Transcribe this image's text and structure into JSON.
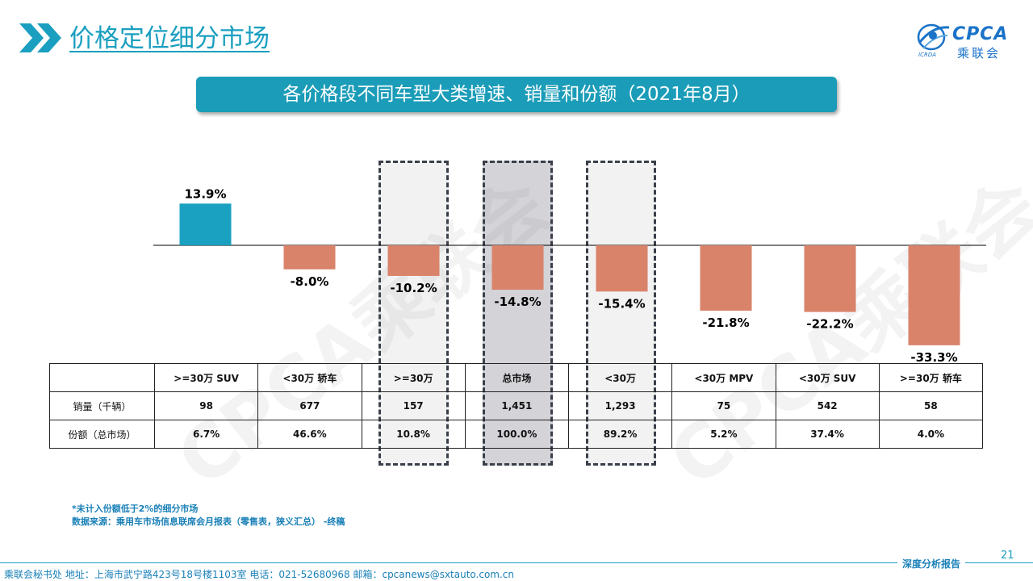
{
  "header": {
    "title": "价格定位细分市场",
    "subtitle": "各价格段不同车型大类增速、销量和份额（2021年8月）"
  },
  "logo": {
    "text_en": "CPCA",
    "text_cn": "乘联会",
    "text_sub": "ICRDA"
  },
  "watermark": "CPCA乘联会",
  "colors": {
    "accent": "#1a9fc0",
    "positive_bar": "#1aa0c0",
    "negative_bar": "#d9836a",
    "subtitle_bg": "#1b9cb8"
  },
  "chart_data": {
    "type": "bar",
    "categories": [
      ">=30万 SUV",
      "<30万 轿车",
      ">=30万",
      "总市场",
      "<30万",
      "<30万 MPV",
      "<30万 SUV",
      ">=30万 轿车"
    ],
    "values": [
      13.9,
      -8.0,
      -10.2,
      -14.8,
      -15.4,
      -21.8,
      -22.2,
      -33.3
    ],
    "value_labels": [
      "13.9%",
      "-8.0%",
      "-10.2%",
      "-14.8%",
      "-15.4%",
      "-21.8%",
      "-22.2%",
      "-33.3%"
    ],
    "highlighted": [
      ">=30万",
      "总市场",
      "<30万"
    ],
    "title": "",
    "xlabel": "",
    "ylabel": ""
  },
  "table": {
    "columns": [
      ">=30万 SUV",
      "<30万 轿车",
      ">=30万",
      "总市场",
      "<30万",
      "<30万 MPV",
      "<30万 SUV",
      ">=30万 轿车"
    ],
    "rows": [
      {
        "label": "销量（千辆）",
        "values": [
          "98",
          "677",
          "157",
          "1,451",
          "1,293",
          "75",
          "542",
          "58"
        ]
      },
      {
        "label": "份额（总市场）",
        "values": [
          "6.7%",
          "46.6%",
          "10.8%",
          "100.0%",
          "89.2%",
          "5.2%",
          "37.4%",
          "4.0%"
        ]
      }
    ]
  },
  "footnote": {
    "note": "*未计入份额低于2%的细分市场",
    "source": "数据来源：乘用车市场信息联席会月报表（零售表，狭义汇总）   -终稿"
  },
  "footer": {
    "contact": "乘联会秘书处    地址：上海市武宁路423号18号楼1103室    电话：021-52680968    邮箱：cpcanews@sxtauto.com.cn",
    "report": "深度分析报告",
    "page": "21"
  }
}
